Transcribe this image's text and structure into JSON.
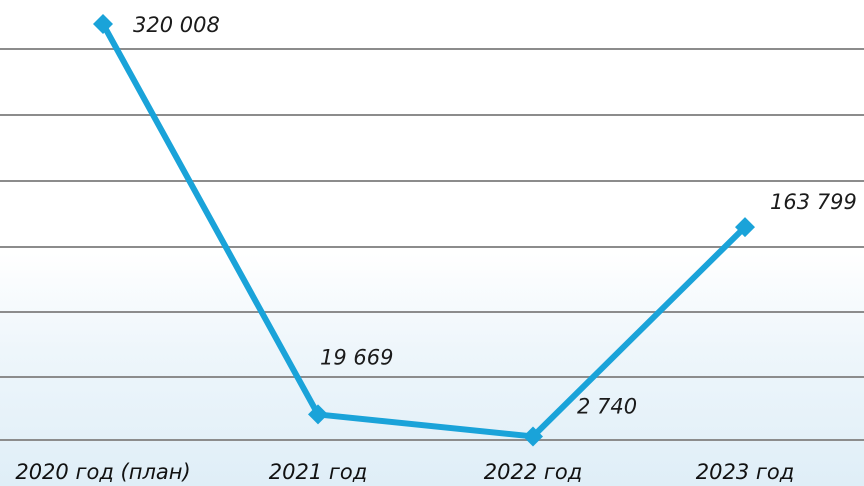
{
  "chart_data": {
    "type": "line",
    "categories": [
      "2020 год (план)",
      "2021 год",
      "2022 год",
      "2023 год"
    ],
    "series": [
      {
        "values": [
          320008,
          19669,
          2740,
          163799
        ],
        "labels": [
          "320 008",
          "19 669",
          "2 740",
          "163 799"
        ],
        "color": "#1aa3d9"
      }
    ],
    "ylim": [
      0,
      320008
    ],
    "grid": true,
    "legend": "none",
    "title": "",
    "xlabel": "",
    "ylabel": "",
    "colors": {
      "line": "#1aa3d9",
      "grid": "#8c8c8c",
      "text": "#1b1b1b"
    }
  }
}
